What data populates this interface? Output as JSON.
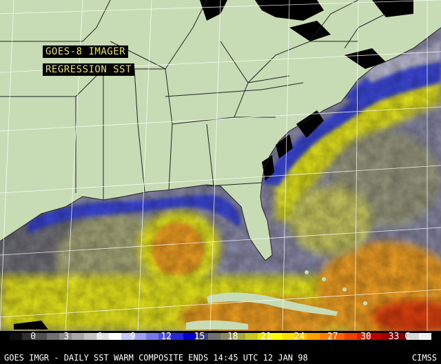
{
  "title_line1": "GOES-8 IMAGER",
  "title_line2": "REGRESSION SST",
  "colorbar": {
    "ticks": [
      "0",
      "3",
      "6",
      "9",
      "12",
      "15",
      "18",
      "21",
      "24",
      "27",
      "30",
      "33 C"
    ],
    "colors": [
      "#101010",
      "#303030",
      "#505050",
      "#707070",
      "#8c8c8c",
      "#a8a8a8",
      "#c4c4c4",
      "#e0e0e0",
      "#ffffff",
      "#c8c8f8",
      "#a0a0f0",
      "#7878e8",
      "#5050e0",
      "#2828d8",
      "#0000d0",
      "#404080",
      "#707070",
      "#8c8c60",
      "#a8a840",
      "#c8c820",
      "#e8e800",
      "#ffff00",
      "#ffe000",
      "#ffc000",
      "#ffa000",
      "#ff8000",
      "#ff6000",
      "#f04000",
      "#e02000",
      "#c00000",
      "#a00000",
      "#800000",
      "#d8d8d8",
      "#f0f0f0"
    ]
  },
  "footer": {
    "left": "GOES IMGR - DAILY SST WARM COMPOSITE ENDS 14:45 UTC 12 JAN 98",
    "right": "CIMSS"
  },
  "map_colors": {
    "land": "#c7dcb4",
    "cloud": "#000000",
    "cold_water": "#3a46d8",
    "cool_water": "#8a8aa8",
    "mid_water": "#a8a87a",
    "warm_water": "#e6e61a",
    "hot_water": "#f0a020",
    "grid": "#ffffff"
  }
}
